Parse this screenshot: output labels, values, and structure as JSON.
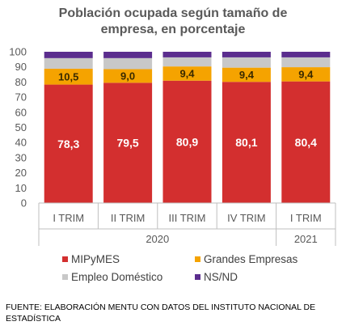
{
  "chart_data": {
    "type": "bar",
    "stacked": true,
    "title_lines": [
      "Población ocupada según tamaño de",
      "empresa, en porcentaje"
    ],
    "categories": [
      "I TRIM",
      "II TRIM",
      "III TRIM",
      "IV TRIM",
      "I TRIM"
    ],
    "years": [
      {
        "label": "2020",
        "span": [
          0,
          3
        ]
      },
      {
        "label": "2021",
        "span": [
          4,
          4
        ]
      }
    ],
    "series": [
      {
        "name": "MIPyMES",
        "color": "#d32f2f",
        "values": [
          78.3,
          79.5,
          80.9,
          80.1,
          80.4
        ],
        "labels": [
          "78,3",
          "79,5",
          "80,9",
          "80,1",
          "80,4"
        ],
        "label_color": "#ffffff"
      },
      {
        "name": "Grandes Empresas",
        "color": "#f5a300",
        "values": [
          10.5,
          9.0,
          9.4,
          9.4,
          9.4
        ],
        "labels": [
          "10,5",
          "9,0",
          "9,4",
          "9,4",
          "9,4"
        ],
        "label_color": "#3a2a00"
      },
      {
        "name": "Empleo Doméstico",
        "color": "#c8c8c8",
        "values": [
          7.0,
          7.3,
          6.0,
          6.8,
          6.5
        ],
        "labels": null
      },
      {
        "name": "NS/ND",
        "color": "#5b2d8e",
        "values": [
          4.2,
          4.2,
          3.7,
          3.7,
          3.7
        ],
        "labels": null
      }
    ],
    "ylim": [
      0,
      100
    ],
    "yticks": [
      "0",
      "10",
      "20",
      "30",
      "40",
      "50",
      "60",
      "70",
      "80",
      "90",
      "100"
    ],
    "grid": false,
    "legend_placement": "bottom"
  },
  "source_text": "FUENTE: ELABORACIÓN MENTU CON DATOS DEL INSTITUTO NACIONAL DE ESTADÍSTICA"
}
